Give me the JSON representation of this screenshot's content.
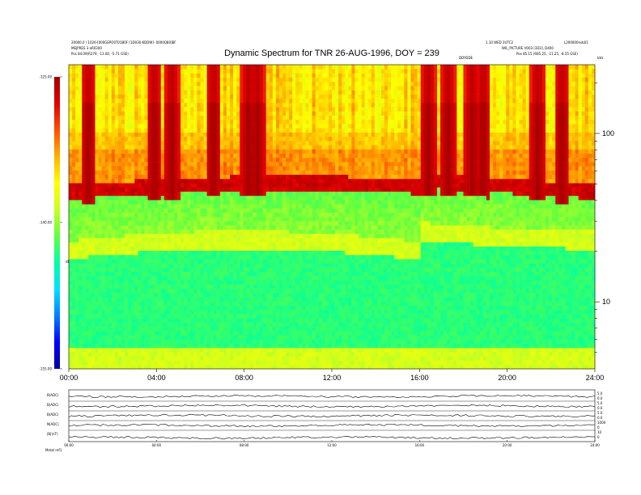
{
  "header": {
    "title": "Dynamic Spectrum for TNR 26-AUG-1996, DOY = 239",
    "left_line1": "20000.0 / 1026-[000GEPO0T01B0F [1D030-6DDW]- 0000Q80]BF",
    "left_line2": "MEJPRES 3 aR0300",
    "left_line3": "Pos    84.09(R279, -13.00, -5.71 GSE)",
    "right_line1": "1.10 WED 2UTC2",
    "right_line2": "WIL_PICTURE V003 [3D3], D400",
    "right_line3": "Pos    85.15 (R85.25, -11.25, -8.55 GSE)",
    "top_right_code": "L200000nsb01",
    "mid_code": "DDYDDE",
    "y_unit_top": "kHz"
  },
  "colorbar": {
    "tick_labels": [
      "-125.00",
      "-140.00",
      "-155.00"
    ],
    "unit_label": "dBV",
    "colors": [
      "#0000a0",
      "#0000ff",
      "#0080ff",
      "#00e0ff",
      "#00ffa0",
      "#60ff40",
      "#c8ff20",
      "#ffff00",
      "#ffb000",
      "#ff5000",
      "#e00000",
      "#a00000"
    ]
  },
  "chart_data": {
    "type": "heatmap",
    "title": "Dynamic Spectrum for TNR 26-AUG-1996, DOY = 239",
    "x_tick_labels": [
      "00:00",
      "04:00",
      "08:00",
      "12:00",
      "16:00",
      "20:00",
      "24:00"
    ],
    "x_range_hours": [
      0,
      24
    ],
    "y_scale": "log",
    "y_tick_labels": [
      "100",
      "10"
    ],
    "y_range_khz": [
      4,
      256
    ],
    "z_range_dbv": [
      -155,
      -125
    ],
    "description_bands": [
      {
        "band": "upper_quiet",
        "freq_khz": [
          60,
          256
        ],
        "level_dbv": -132
      },
      {
        "band": "plasma_line",
        "freq_khz": [
          40,
          60
        ],
        "level_dbv": -127
      },
      {
        "band": "thermal_noise",
        "freq_khz": [
          4,
          20
        ],
        "level_dbv": -142
      }
    ],
    "bursts_hours": [
      0.9,
      3.9,
      4.7,
      6.6,
      8.2,
      8.6,
      16.4,
      17.3,
      18.4,
      18.9,
      21.4,
      22.5
    ]
  },
  "lower_panels": {
    "row_labels": [
      "B(ADC)",
      "B(ADC)",
      "B(ADC)",
      "N(ADC)",
      "|B|(nT)"
    ],
    "right_ticks": [
      [
        "5.0",
        "0.0"
      ],
      [
        "5.0",
        "0.0"
      ],
      [
        "5.0",
        "0.0"
      ],
      [
        "1000",
        "0"
      ],
      [
        "10",
        "0"
      ]
    ],
    "x_tick_labels": [
      "00:00",
      "04:00",
      "08:00",
      "12:00",
      "16:00",
      "20:00",
      "24:00"
    ],
    "footer_label": "Mstat   ref1"
  }
}
